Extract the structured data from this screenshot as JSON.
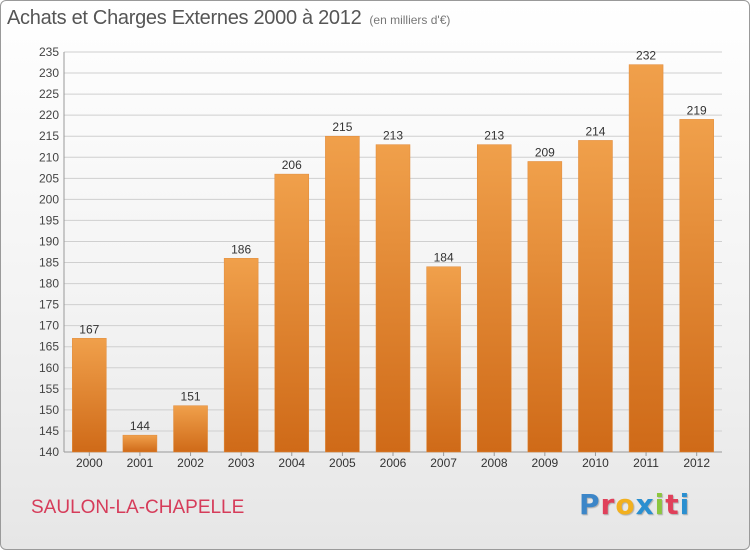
{
  "header": {
    "title": "Achats et Charges Externes 2000 à 2012",
    "unit": "(en milliers d'€)"
  },
  "footer": {
    "town": "SAULON-LA-CHAPELLE",
    "logo_letters": [
      "P",
      "r",
      "o",
      "x",
      "i",
      "t",
      "i"
    ],
    "logo_colors": [
      "#3c86c8",
      "#e0405a",
      "#f2b01e",
      "#2a8fd0",
      "#8cc63f",
      "#e0405a",
      "#2a8fd0"
    ]
  },
  "chart_data": {
    "type": "bar",
    "title": "Achats et Charges Externes 2000 à 2012",
    "subtitle": "(en milliers d'€)",
    "categories": [
      "2000",
      "2001",
      "2002",
      "2003",
      "2004",
      "2005",
      "2006",
      "2007",
      "2008",
      "2009",
      "2010",
      "2011",
      "2012"
    ],
    "values": [
      167,
      144,
      151,
      186,
      206,
      215,
      213,
      184,
      213,
      209,
      214,
      232,
      219
    ],
    "ylim": [
      140,
      235
    ],
    "yticks": [
      140,
      145,
      150,
      155,
      160,
      165,
      170,
      175,
      180,
      185,
      190,
      195,
      200,
      205,
      210,
      215,
      220,
      225,
      230,
      235
    ],
    "grid": true,
    "bar_color": "#f0a04b",
    "bar_color_dark": "#cf6a18"
  }
}
